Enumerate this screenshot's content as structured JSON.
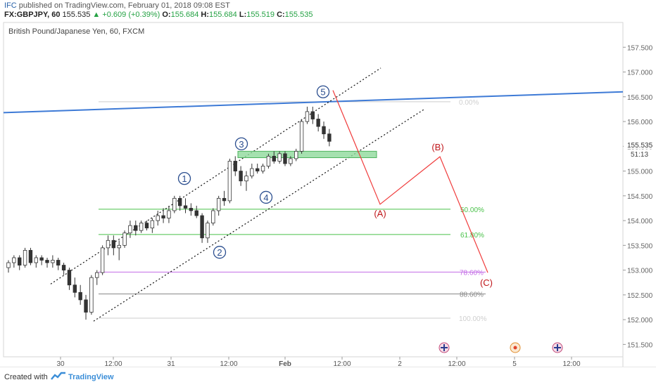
{
  "header": {
    "user": "IFC",
    "published": "published on TradingView.com, February 01, 2018 09:08 EST",
    "symbol": "FX:GBPJPY, 60",
    "price": "155.535",
    "change": "+0.609 (+0.39%)",
    "o_label": "O:",
    "o_val": "155.684",
    "h_label": "H:",
    "h_val": "155.684",
    "l_label": "L:",
    "l_val": "155.519",
    "c_label": "C:",
    "c_val": "155.535",
    "up_arrow": "▲"
  },
  "footer": {
    "created": "Created with",
    "brand": "TradingView"
  },
  "colors": {
    "bull": "#ffffff",
    "bear": "#333333",
    "trendline": "#3d7ad6",
    "projection": "#f03c3c",
    "fib_green": "#49c149",
    "fib_purple": "#c36be6",
    "fib_grey": "#888888",
    "fib_light": "#cccccc",
    "zone": "#8ed99b",
    "wave_label": "#2b4e8f"
  },
  "chart_data": {
    "type": "candlestick",
    "title": "British Pound/Japanese Yen, 60, FXCM",
    "ylim": [
      151.25,
      158.0
    ],
    "y_ticks": [
      "157.500",
      "157.000",
      "156.500",
      "156.000",
      "155.500",
      "155.000",
      "154.500",
      "154.000",
      "153.500",
      "153.000",
      "152.500",
      "152.000",
      "151.500"
    ],
    "x_ticks": [
      "30",
      "12:00",
      "31",
      "12:00",
      "Feb",
      "12:00",
      "2",
      "12:00",
      "5",
      "12:00"
    ],
    "last_price": "155.535",
    "countdown": "51:13",
    "candles": [
      [
        153.05,
        153.2,
        152.95,
        153.15
      ],
      [
        153.15,
        153.3,
        153.05,
        153.25
      ],
      [
        153.25,
        153.3,
        153.0,
        153.1
      ],
      [
        153.1,
        153.45,
        153.05,
        153.4
      ],
      [
        153.4,
        153.45,
        153.1,
        153.15
      ],
      [
        153.15,
        153.3,
        153.05,
        153.25
      ],
      [
        153.25,
        153.3,
        153.1,
        153.2
      ],
      [
        153.2,
        153.25,
        153.05,
        153.15
      ],
      [
        153.15,
        153.3,
        153.05,
        153.2
      ],
      [
        153.2,
        153.25,
        153.0,
        153.1
      ],
      [
        153.1,
        153.15,
        152.9,
        153.0
      ],
      [
        153.0,
        153.05,
        152.6,
        152.7
      ],
      [
        152.7,
        152.85,
        152.45,
        152.55
      ],
      [
        152.55,
        152.7,
        152.3,
        152.4
      ],
      [
        152.4,
        152.5,
        152.0,
        152.15
      ],
      [
        152.15,
        152.9,
        152.1,
        152.85
      ],
      [
        152.85,
        153.0,
        152.7,
        152.95
      ],
      [
        152.95,
        153.5,
        152.9,
        153.45
      ],
      [
        153.45,
        153.7,
        153.3,
        153.6
      ],
      [
        153.6,
        153.7,
        153.3,
        153.45
      ],
      [
        153.45,
        153.6,
        153.2,
        153.5
      ],
      [
        153.5,
        153.8,
        153.45,
        153.75
      ],
      [
        153.75,
        154.0,
        153.65,
        153.9
      ],
      [
        153.9,
        154.0,
        153.7,
        153.8
      ],
      [
        153.8,
        154.0,
        153.75,
        153.95
      ],
      [
        153.95,
        154.0,
        153.8,
        153.85
      ],
      [
        153.85,
        154.05,
        153.75,
        154.0
      ],
      [
        154.0,
        154.2,
        153.9,
        154.1
      ],
      [
        154.1,
        154.25,
        153.95,
        154.05
      ],
      [
        154.05,
        154.3,
        153.95,
        154.2
      ],
      [
        154.2,
        154.5,
        154.15,
        154.45
      ],
      [
        154.45,
        154.5,
        154.2,
        154.3
      ],
      [
        154.3,
        154.45,
        154.15,
        154.25
      ],
      [
        154.25,
        154.35,
        154.1,
        154.2
      ],
      [
        154.2,
        154.3,
        154.05,
        154.1
      ],
      [
        154.1,
        154.15,
        153.55,
        153.65
      ],
      [
        153.65,
        154.0,
        153.55,
        153.95
      ],
      [
        153.95,
        154.25,
        153.9,
        154.2
      ],
      [
        154.2,
        154.5,
        154.1,
        154.45
      ],
      [
        154.45,
        154.6,
        154.3,
        154.4
      ],
      [
        154.4,
        155.25,
        154.35,
        155.2
      ],
      [
        155.2,
        155.3,
        154.9,
        155.0
      ],
      [
        155.0,
        155.1,
        154.7,
        154.8
      ],
      [
        154.8,
        155.0,
        154.6,
        154.9
      ],
      [
        154.9,
        155.15,
        154.85,
        155.05
      ],
      [
        155.05,
        155.15,
        154.95,
        155.0
      ],
      [
        155.0,
        155.15,
        154.95,
        155.1
      ],
      [
        155.1,
        155.35,
        155.05,
        155.3
      ],
      [
        155.3,
        155.4,
        155.15,
        155.2
      ],
      [
        155.2,
        155.4,
        155.15,
        155.35
      ],
      [
        155.35,
        155.4,
        155.1,
        155.15
      ],
      [
        155.15,
        155.3,
        155.1,
        155.25
      ],
      [
        155.25,
        155.45,
        155.2,
        155.4
      ],
      [
        155.4,
        156.05,
        155.35,
        156.0
      ],
      [
        156.0,
        156.3,
        155.95,
        156.2
      ],
      [
        156.2,
        156.3,
        155.95,
        156.05
      ],
      [
        156.05,
        156.15,
        155.8,
        155.9
      ],
      [
        155.9,
        156.0,
        155.65,
        155.75
      ],
      [
        155.75,
        155.85,
        155.5,
        155.6
      ]
    ],
    "fib_levels": [
      {
        "label": "0.00%",
        "value": 156.4
      },
      {
        "label": "50.00%",
        "value": 154.23
      },
      {
        "label": "61.80%",
        "value": 153.72
      },
      {
        "label": "78.60%",
        "value": 152.96
      },
      {
        "label": "88.60%",
        "value": 152.52
      },
      {
        "label": "100.00%",
        "value": 152.03
      }
    ],
    "wave_labels": [
      "1",
      "2",
      "3",
      "4",
      "5"
    ],
    "projection_labels": [
      "(A)",
      "(B)",
      "(C)"
    ]
  }
}
